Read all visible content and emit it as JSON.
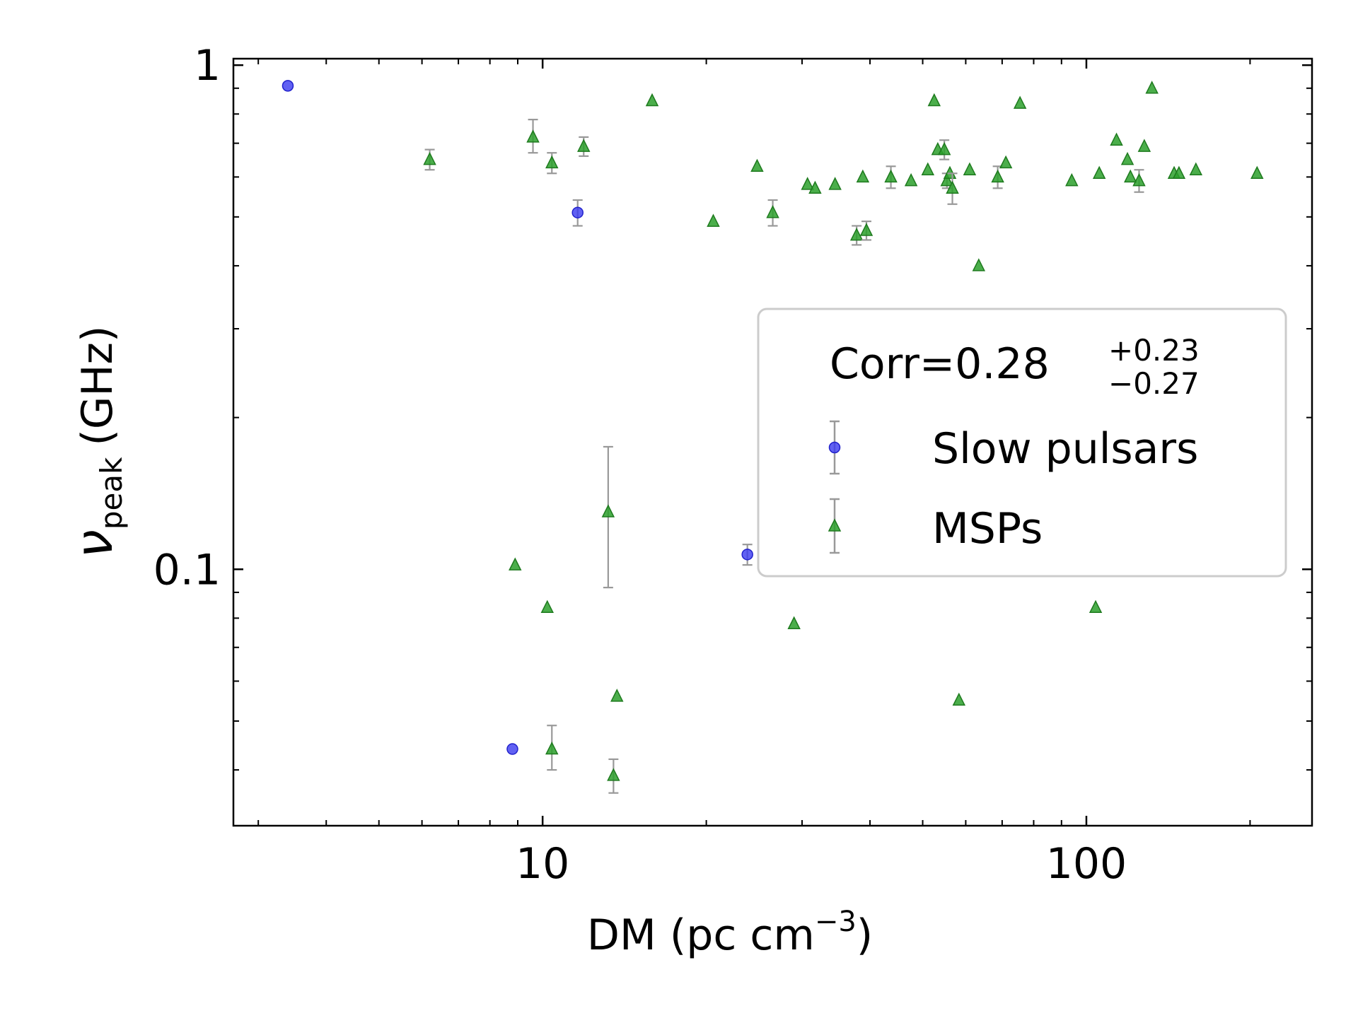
{
  "chart_data": {
    "type": "scatter",
    "xlabel": "DM (pc cm",
    "xlabel_sup": "−3",
    "xlabel_close": ")",
    "ylabel_nu": "ν",
    "ylabel_sub": "peak",
    "ylabel_unit": "(GHz)",
    "xscale": "log",
    "yscale": "log",
    "xlim": [
      2.7,
      260
    ],
    "ylim": [
      0.031,
      1.03
    ],
    "xticks": [
      {
        "value": 10,
        "label": "10"
      },
      {
        "value": 100,
        "label": "100"
      }
    ],
    "yticks": [
      {
        "value": 0.1,
        "label": "0.1"
      },
      {
        "value": 1,
        "label": "1"
      }
    ],
    "legend": {
      "position": "center-right",
      "title_main": "Corr=0.28",
      "title_sup": "+0.23",
      "title_sub": "−0.27"
    },
    "series": [
      {
        "name": "Slow pulsars",
        "marker": "circle",
        "color": "#3a3af0",
        "points": [
          {
            "x": 3.4,
            "y": 0.91
          },
          {
            "x": 11.6,
            "y": 0.51,
            "ylo": 0.48,
            "yhi": 0.54
          },
          {
            "x": 8.8,
            "y": 0.044
          },
          {
            "x": 23.8,
            "y": 0.107,
            "ylo": 0.102,
            "yhi": 0.112
          }
        ]
      },
      {
        "name": "MSPs",
        "marker": "triangle",
        "color": "#2ca02c",
        "points": [
          {
            "x": 6.2,
            "y": 0.65,
            "ylo": 0.62,
            "yhi": 0.68
          },
          {
            "x": 9.6,
            "y": 0.72,
            "ylo": 0.67,
            "yhi": 0.78
          },
          {
            "x": 10.4,
            "y": 0.64,
            "ylo": 0.61,
            "yhi": 0.67
          },
          {
            "x": 11.9,
            "y": 0.69,
            "ylo": 0.66,
            "yhi": 0.72
          },
          {
            "x": 15.9,
            "y": 0.85
          },
          {
            "x": 20.6,
            "y": 0.49
          },
          {
            "x": 24.8,
            "y": 0.63
          },
          {
            "x": 26.5,
            "y": 0.51,
            "ylo": 0.48,
            "yhi": 0.54
          },
          {
            "x": 30.7,
            "y": 0.58
          },
          {
            "x": 31.7,
            "y": 0.57
          },
          {
            "x": 34.5,
            "y": 0.58
          },
          {
            "x": 37.8,
            "y": 0.46,
            "ylo": 0.44,
            "yhi": 0.48
          },
          {
            "x": 38.8,
            "y": 0.6
          },
          {
            "x": 39.4,
            "y": 0.47,
            "ylo": 0.45,
            "yhi": 0.49
          },
          {
            "x": 43.7,
            "y": 0.6,
            "ylo": 0.57,
            "yhi": 0.63
          },
          {
            "x": 47.6,
            "y": 0.59
          },
          {
            "x": 51.1,
            "y": 0.62
          },
          {
            "x": 52.5,
            "y": 0.85
          },
          {
            "x": 53.3,
            "y": 0.68
          },
          {
            "x": 54.8,
            "y": 0.68,
            "ylo": 0.65,
            "yhi": 0.71
          },
          {
            "x": 55.4,
            "y": 0.59,
            "ylo": 0.57,
            "yhi": 0.61
          },
          {
            "x": 56.1,
            "y": 0.61
          },
          {
            "x": 56.7,
            "y": 0.57,
            "ylo": 0.53,
            "yhi": 0.61
          },
          {
            "x": 58.3,
            "y": 0.055
          },
          {
            "x": 61.0,
            "y": 0.62
          },
          {
            "x": 63.4,
            "y": 0.4
          },
          {
            "x": 68.7,
            "y": 0.6,
            "ylo": 0.57,
            "yhi": 0.63
          },
          {
            "x": 71.1,
            "y": 0.64
          },
          {
            "x": 75.5,
            "y": 0.84
          },
          {
            "x": 94.0,
            "y": 0.59
          },
          {
            "x": 104.0,
            "y": 0.084
          },
          {
            "x": 105.6,
            "y": 0.61
          },
          {
            "x": 113.6,
            "y": 0.71
          },
          {
            "x": 119.0,
            "y": 0.65
          },
          {
            "x": 120.5,
            "y": 0.6
          },
          {
            "x": 125.0,
            "y": 0.59,
            "ylo": 0.56,
            "yhi": 0.62
          },
          {
            "x": 127.8,
            "y": 0.69
          },
          {
            "x": 132.0,
            "y": 0.9
          },
          {
            "x": 145.0,
            "y": 0.61
          },
          {
            "x": 148.0,
            "y": 0.61
          },
          {
            "x": 159.0,
            "y": 0.62
          },
          {
            "x": 206.0,
            "y": 0.61
          },
          {
            "x": 8.9,
            "y": 0.102
          },
          {
            "x": 10.2,
            "y": 0.084
          },
          {
            "x": 13.2,
            "y": 0.13,
            "ylo": 0.092,
            "yhi": 0.175
          },
          {
            "x": 13.7,
            "y": 0.056
          },
          {
            "x": 10.4,
            "y": 0.044,
            "ylo": 0.04,
            "yhi": 0.049
          },
          {
            "x": 13.5,
            "y": 0.039,
            "ylo": 0.036,
            "yhi": 0.042
          },
          {
            "x": 29.0,
            "y": 0.078
          }
        ]
      }
    ]
  }
}
